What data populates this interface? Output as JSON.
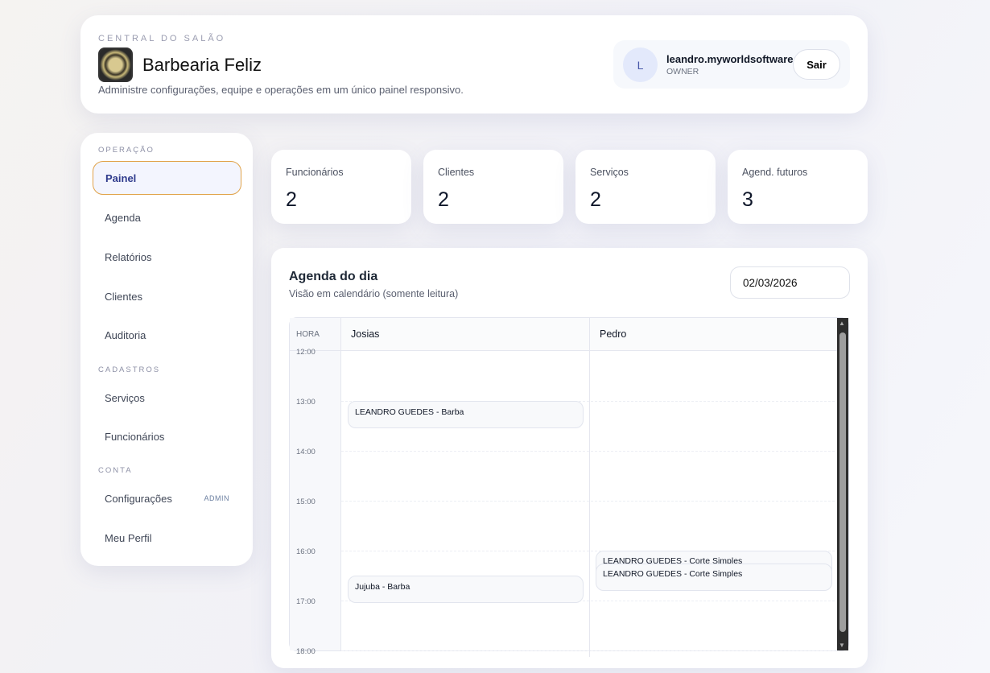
{
  "header": {
    "eyebrow": "CENTRAL DO SALÃO",
    "title": "Barbearia Feliz",
    "subtitle": "Administre configurações, equipe e operações em um único painel responsivo.",
    "user": {
      "initial": "L",
      "name": "leandro.myworldsoftware",
      "role": "OWNER",
      "logout": "Sair"
    }
  },
  "sidebar": {
    "sections": [
      {
        "label": "OPERAÇÃO",
        "items": [
          {
            "label": "Painel",
            "active": true
          },
          {
            "label": "Agenda"
          },
          {
            "label": "Relatórios"
          },
          {
            "label": "Clientes"
          },
          {
            "label": "Auditoria"
          }
        ]
      },
      {
        "label": "CADASTROS",
        "items": [
          {
            "label": "Serviços"
          },
          {
            "label": "Funcionários"
          }
        ]
      },
      {
        "label": "CONTA",
        "items": [
          {
            "label": "Configurações",
            "badge": "ADMIN"
          },
          {
            "label": "Meu Perfil"
          }
        ]
      }
    ]
  },
  "stats": [
    {
      "label": "Funcionários",
      "value": "2"
    },
    {
      "label": "Clientes",
      "value": "2"
    },
    {
      "label": "Serviços",
      "value": "2"
    },
    {
      "label": "Agend. futuros",
      "value": "3"
    }
  ],
  "agenda": {
    "title": "Agenda do dia",
    "subtitle": "Visão em calendário (somente leitura)",
    "date": "02/03/2026",
    "hour_header": "HORA",
    "columns": [
      "Josias",
      "Pedro"
    ],
    "hours": [
      "12:00",
      "13:00",
      "14:00",
      "15:00",
      "16:00",
      "17:00",
      "18:00"
    ],
    "events": [
      {
        "column": "Josias",
        "label": "LEANDRO GUEDES - Barba"
      },
      {
        "column": "Josias",
        "label": "Jujuba - Barba"
      },
      {
        "column": "Pedro",
        "label": "LEANDRO GUEDES - Corte Simples"
      },
      {
        "column": "Pedro",
        "label": "LEANDRO GUEDES - Corte Simples"
      }
    ]
  }
}
